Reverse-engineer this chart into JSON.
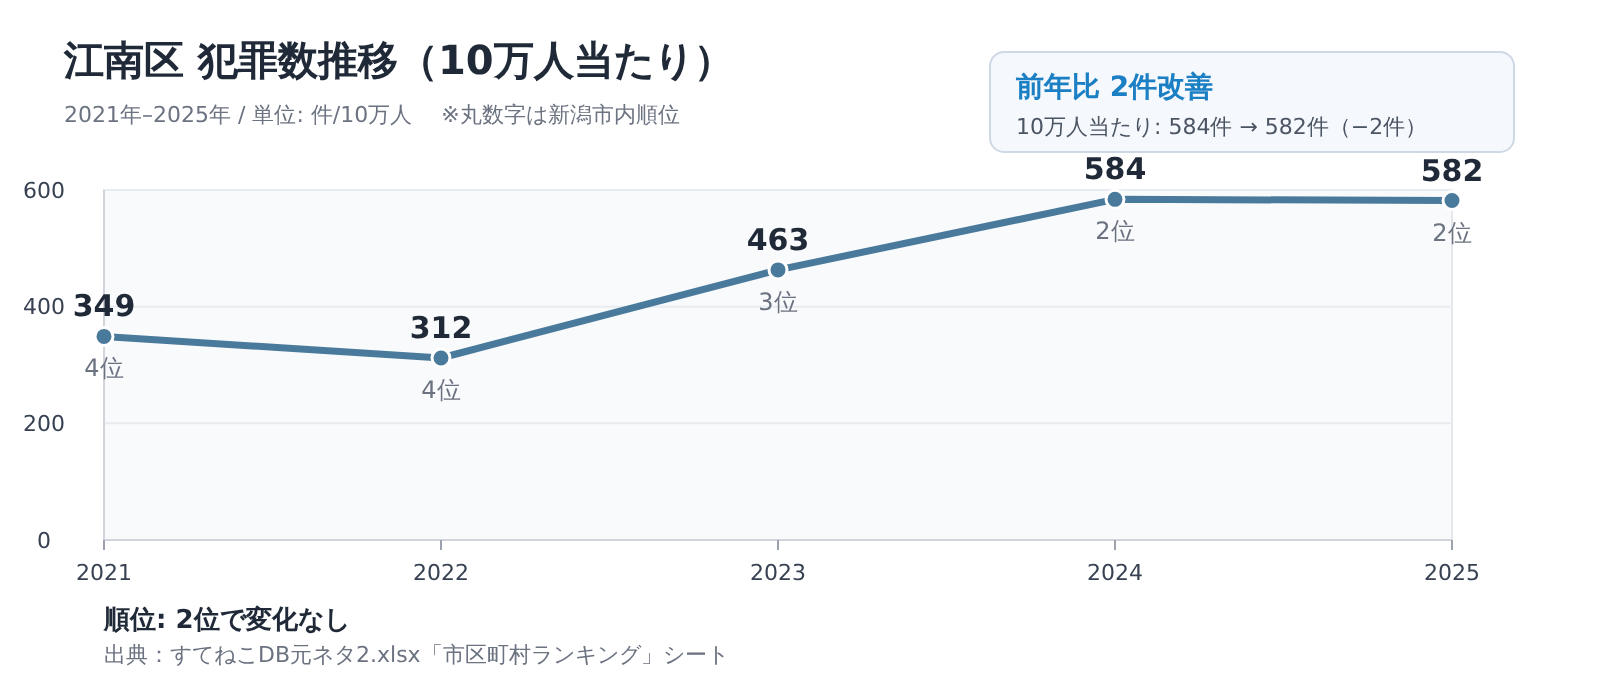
{
  "chart_data": {
    "type": "line",
    "title": "江南区  犯罪数推移（10万人当たり）",
    "subtitle": "2021年–2025年 / 単位: 件/10万人　 ※丸数字は新潟市内順位",
    "categories": [
      "2021",
      "2022",
      "2023",
      "2024",
      "2025"
    ],
    "series": [
      {
        "color": "#4a7a9b",
        "values": [
          349,
          312,
          463,
          584,
          582
        ]
      }
    ],
    "ylim": [
      0,
      600
    ],
    "yticks": [
      0,
      200,
      400,
      600
    ],
    "grid": "y",
    "marker": "circle",
    "line_style": "solid",
    "data_labels": true,
    "annotations": [
      "前年比  2件改善",
      "10万人当たり: 584件 → 582件（−2件）",
      {
        "text": "4位",
        "x": "2021",
        "y": 349
      },
      {
        "text": "4位",
        "x": "2022",
        "y": 312
      },
      {
        "text": "3位",
        "x": "2023",
        "y": 463
      },
      {
        "text": "2位",
        "x": "2024",
        "y": 584
      },
      {
        "text": "2位",
        "x": "2025",
        "y": 582
      },
      "順位: 2位で変化なし",
      "出典：すてねこDB元ネタ2.xlsx「市区町村ランキング」シート"
    ]
  }
}
